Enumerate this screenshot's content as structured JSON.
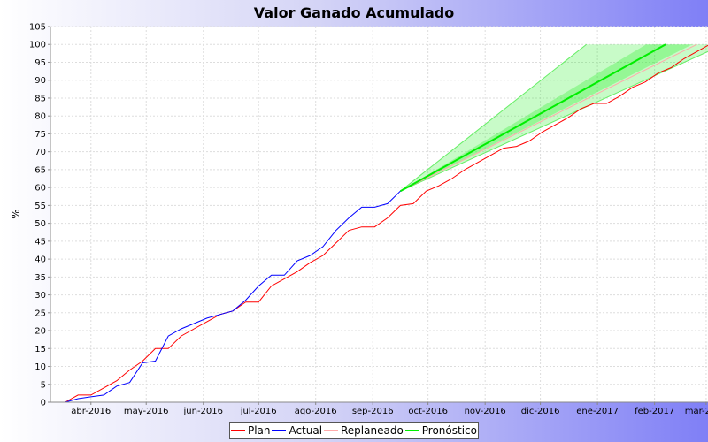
{
  "chart_data": {
    "type": "line",
    "title": "Valor Ganado Acumulado",
    "ylabel": "%",
    "ylim": [
      0,
      105
    ],
    "yticks": [
      0,
      5,
      10,
      15,
      20,
      25,
      30,
      35,
      40,
      45,
      50,
      55,
      60,
      65,
      70,
      75,
      80,
      85,
      90,
      95,
      100,
      105
    ],
    "xlim": [
      "2016-03-10",
      "2017-03-02"
    ],
    "xticks": [
      {
        "date": "2016-04-01",
        "label": "abr-2016"
      },
      {
        "date": "2016-05-01",
        "label": "may-2016"
      },
      {
        "date": "2016-06-01",
        "label": "jun-2016"
      },
      {
        "date": "2016-07-01",
        "label": "jul-2016"
      },
      {
        "date": "2016-08-01",
        "label": "ago-2016"
      },
      {
        "date": "2016-09-01",
        "label": "sep-2016"
      },
      {
        "date": "2016-10-01",
        "label": "oct-2016"
      },
      {
        "date": "2016-11-01",
        "label": "nov-2016"
      },
      {
        "date": "2016-12-01",
        "label": "dic-2016"
      },
      {
        "date": "2017-01-01",
        "label": "ene-2017"
      },
      {
        "date": "2017-02-01",
        "label": "feb-2017"
      },
      {
        "date": "2017-03-01",
        "label": "mar-2017"
      }
    ],
    "grid": true,
    "legend_position": "bottom",
    "series": [
      {
        "name": "Plan",
        "color": "#ff0000",
        "points": [
          [
            "2016-03-18",
            0
          ],
          [
            "2016-03-25",
            2
          ],
          [
            "2016-04-01",
            2
          ],
          [
            "2016-04-08",
            4
          ],
          [
            "2016-04-15",
            6
          ],
          [
            "2016-04-22",
            9
          ],
          [
            "2016-04-29",
            11.5
          ],
          [
            "2016-05-06",
            15
          ],
          [
            "2016-05-13",
            15
          ],
          [
            "2016-05-20",
            18.5
          ],
          [
            "2016-05-27",
            20.5
          ],
          [
            "2016-06-03",
            22.5
          ],
          [
            "2016-06-10",
            24.5
          ],
          [
            "2016-06-17",
            25.5
          ],
          [
            "2016-06-24",
            28
          ],
          [
            "2016-07-01",
            28
          ],
          [
            "2016-07-08",
            32.5
          ],
          [
            "2016-07-15",
            34.5
          ],
          [
            "2016-07-22",
            36.5
          ],
          [
            "2016-07-29",
            39
          ],
          [
            "2016-08-05",
            41
          ],
          [
            "2016-08-12",
            44.5
          ],
          [
            "2016-08-19",
            48
          ],
          [
            "2016-08-26",
            49
          ],
          [
            "2016-09-02",
            49
          ],
          [
            "2016-09-09",
            51.5
          ],
          [
            "2016-09-16",
            55
          ],
          [
            "2016-09-23",
            55.5
          ],
          [
            "2016-09-30",
            59
          ],
          [
            "2016-10-07",
            60.5
          ],
          [
            "2016-10-14",
            62.5
          ],
          [
            "2016-10-21",
            65
          ],
          [
            "2016-10-28",
            67
          ],
          [
            "2016-11-04",
            69
          ],
          [
            "2016-11-11",
            71
          ],
          [
            "2016-11-18",
            71.5
          ],
          [
            "2016-11-25",
            73
          ],
          [
            "2016-12-02",
            75.5
          ],
          [
            "2016-12-09",
            77.5
          ],
          [
            "2016-12-16",
            79.5
          ],
          [
            "2016-12-23",
            82
          ],
          [
            "2016-12-30",
            83.5
          ],
          [
            "2017-01-06",
            83.5
          ],
          [
            "2017-01-13",
            85.5
          ],
          [
            "2017-01-20",
            88
          ],
          [
            "2017-01-27",
            89.5
          ],
          [
            "2017-02-03",
            92
          ],
          [
            "2017-02-10",
            93.5
          ],
          [
            "2017-02-17",
            96
          ],
          [
            "2017-02-24",
            98
          ],
          [
            "2017-03-03",
            100
          ]
        ]
      },
      {
        "name": "Actual",
        "color": "#0000ff",
        "points": [
          [
            "2016-03-18",
            0
          ],
          [
            "2016-03-25",
            1
          ],
          [
            "2016-04-01",
            1.5
          ],
          [
            "2016-04-08",
            2
          ],
          [
            "2016-04-15",
            4.5
          ],
          [
            "2016-04-22",
            5.5
          ],
          [
            "2016-04-29",
            11
          ],
          [
            "2016-05-06",
            11.5
          ],
          [
            "2016-05-13",
            18.5
          ],
          [
            "2016-05-20",
            20.5
          ],
          [
            "2016-05-27",
            22
          ],
          [
            "2016-06-03",
            23.5
          ],
          [
            "2016-06-10",
            24.5
          ],
          [
            "2016-06-17",
            25.5
          ],
          [
            "2016-06-24",
            28.5
          ],
          [
            "2016-07-01",
            32.5
          ],
          [
            "2016-07-08",
            35.5
          ],
          [
            "2016-07-15",
            35.5
          ],
          [
            "2016-07-22",
            39.5
          ],
          [
            "2016-07-29",
            41
          ],
          [
            "2016-08-05",
            43.5
          ],
          [
            "2016-08-12",
            48
          ],
          [
            "2016-08-19",
            51.5
          ],
          [
            "2016-08-26",
            54.5
          ],
          [
            "2016-09-02",
            54.5
          ],
          [
            "2016-09-09",
            55.5
          ],
          [
            "2016-09-16",
            59
          ]
        ]
      },
      {
        "name": "Replaneado",
        "color": "#ffaaaa",
        "points": [
          [
            "2016-09-16",
            59
          ],
          [
            "2017-02-24",
            100
          ]
        ]
      },
      {
        "name": "Pronóstico",
        "color": "#00ee00",
        "points": [
          [
            "2016-09-16",
            59
          ],
          [
            "2017-02-07",
            100
          ]
        ],
        "band": {
          "upper": [
            [
              "2016-09-16",
              59
            ],
            [
              "2016-12-26",
              100
            ]
          ],
          "lower": [
            [
              "2016-09-16",
              59
            ],
            [
              "2017-03-02",
              98
            ]
          ]
        }
      }
    ]
  }
}
